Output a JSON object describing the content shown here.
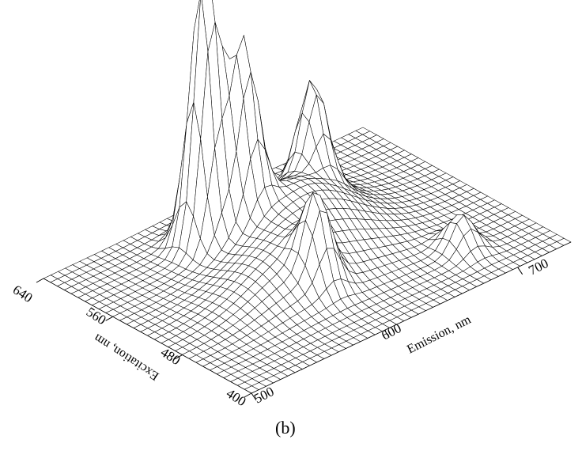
{
  "chart_data": {
    "type": "surface",
    "xlabel": "Emission, nm",
    "ylabel": "Excitation, nm",
    "x_ticks": [
      500,
      600,
      700
    ],
    "y_ticks": [
      400,
      480,
      560,
      640
    ],
    "xlim": [
      500,
      740
    ],
    "ylim": [
      400,
      640
    ],
    "grid": true,
    "peaks": [
      {
        "emission_nm": 585,
        "excitation_nm": 585,
        "height": 1.0
      },
      {
        "emission_nm": 603,
        "excitation_nm": 568,
        "height": 0.63
      },
      {
        "emission_nm": 660,
        "excitation_nm": 575,
        "height": 0.38
      },
      {
        "emission_nm": 600,
        "excitation_nm": 478,
        "height": 0.28
      },
      {
        "emission_nm": 690,
        "excitation_nm": 450,
        "height": 0.13
      }
    ]
  },
  "figure": {
    "panel_label": "(b)"
  },
  "style": {
    "line_color": "#000000",
    "background": "#ffffff"
  }
}
